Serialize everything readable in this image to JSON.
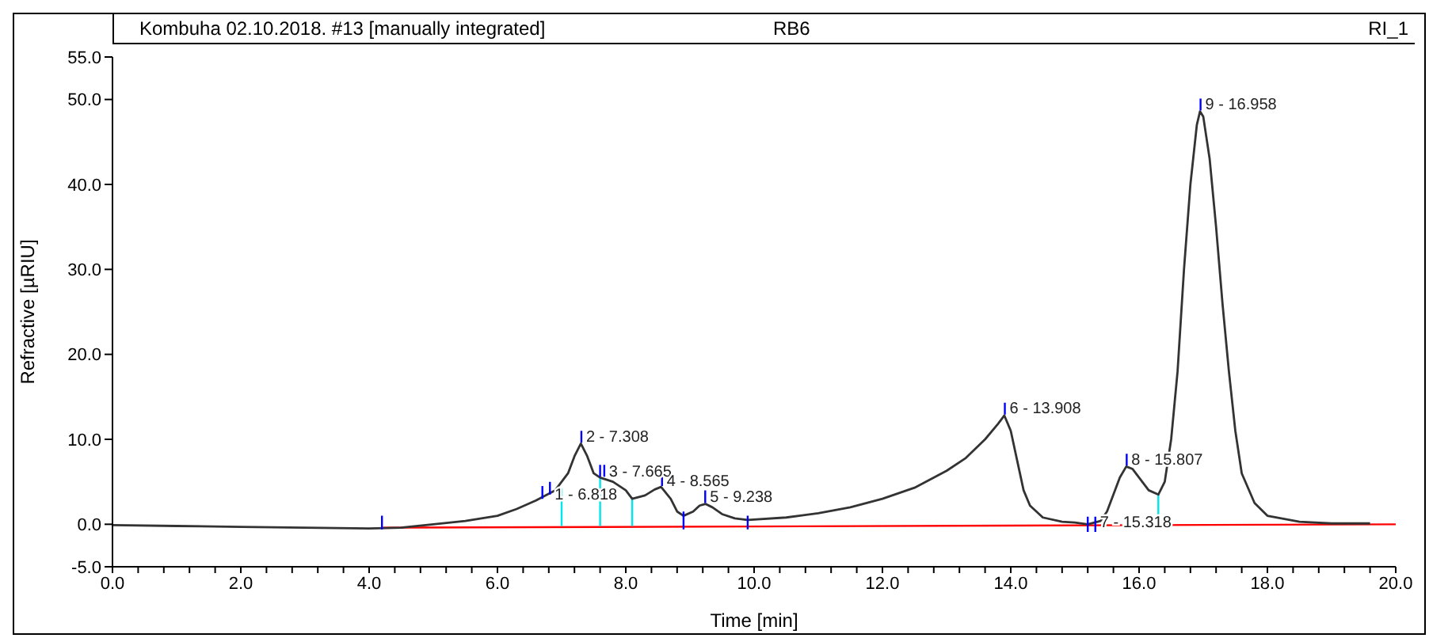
{
  "chart_data": {
    "type": "line",
    "title": "Kombuha 02.10.2018. #13 [manually integrated]",
    "xlabel": "Time [min]",
    "ylabel": "Refractive [µRIU]",
    "xlim": [
      0,
      20
    ],
    "ylim": [
      -5,
      55
    ],
    "xticks": [
      {
        "value": 0,
        "label": "0.0"
      },
      {
        "value": 0.4,
        "label": null
      },
      {
        "value": 0.8,
        "label": null
      },
      {
        "value": 1.2,
        "label": null
      },
      {
        "value": 1.6,
        "label": null
      },
      {
        "value": 2,
        "label": "2.0"
      },
      {
        "value": 2.4,
        "label": null
      },
      {
        "value": 2.8,
        "label": null
      },
      {
        "value": 3.2,
        "label": null
      },
      {
        "value": 3.6,
        "label": null
      },
      {
        "value": 4,
        "label": "4.0"
      },
      {
        "value": 4.4,
        "label": null
      },
      {
        "value": 4.8,
        "label": null
      },
      {
        "value": 5.2,
        "label": null
      },
      {
        "value": 5.6,
        "label": null
      },
      {
        "value": 6,
        "label": "6.0"
      },
      {
        "value": 6.4,
        "label": null
      },
      {
        "value": 6.8,
        "label": null
      },
      {
        "value": 7.2,
        "label": null
      },
      {
        "value": 7.6,
        "label": null
      },
      {
        "value": 8,
        "label": "8.0"
      },
      {
        "value": 8.4,
        "label": null
      },
      {
        "value": 8.8,
        "label": null
      },
      {
        "value": 9.2,
        "label": null
      },
      {
        "value": 9.6,
        "label": null
      },
      {
        "value": 10,
        "label": "10.0"
      },
      {
        "value": 10.4,
        "label": null
      },
      {
        "value": 10.8,
        "label": null
      },
      {
        "value": 11.2,
        "label": null
      },
      {
        "value": 11.6,
        "label": null
      },
      {
        "value": 12,
        "label": "12.0"
      },
      {
        "value": 12.4,
        "label": null
      },
      {
        "value": 12.8,
        "label": null
      },
      {
        "value": 13.2,
        "label": null
      },
      {
        "value": 13.6,
        "label": null
      },
      {
        "value": 14,
        "label": "14.0"
      },
      {
        "value": 14.4,
        "label": null
      },
      {
        "value": 14.8,
        "label": null
      },
      {
        "value": 15.2,
        "label": null
      },
      {
        "value": 15.6,
        "label": null
      },
      {
        "value": 16,
        "label": "16.0"
      },
      {
        "value": 16.4,
        "label": null
      },
      {
        "value": 16.8,
        "label": null
      },
      {
        "value": 17.2,
        "label": null
      },
      {
        "value": 17.6,
        "label": null
      },
      {
        "value": 18,
        "label": "18.0"
      },
      {
        "value": 18.4,
        "label": null
      },
      {
        "value": 18.8,
        "label": null
      },
      {
        "value": 19.2,
        "label": null
      },
      {
        "value": 19.6,
        "label": null
      },
      {
        "value": 20,
        "label": "20.0"
      }
    ],
    "yticks": [
      {
        "value": -5,
        "label": "-5.0"
      },
      {
        "value": 0,
        "label": "0.0"
      },
      {
        "value": 10,
        "label": "10.0"
      },
      {
        "value": 20,
        "label": "20.0"
      },
      {
        "value": 30,
        "label": "30.0"
      },
      {
        "value": 40,
        "label": "40.0"
      },
      {
        "value": 50,
        "label": "50.0"
      },
      {
        "value": 55,
        "label": "55.0"
      }
    ],
    "series": [
      {
        "type": "line",
        "color": "#ff0000",
        "x": [
          4.2,
          20
        ],
        "values": [
          -0.4,
          0
        ]
      },
      {
        "type": "line",
        "color": "#00e5ee",
        "x": [
          7.0,
          7.0,
          null,
          7.6,
          7.6,
          null,
          8.1,
          8.1,
          null,
          16.3,
          16.3
        ],
        "values": [
          -0.2,
          4.2,
          null,
          -0.2,
          5.5,
          null,
          -0.2,
          3,
          null,
          -0.1,
          3.5
        ]
      },
      {
        "type": "line",
        "color": "#333333",
        "x": [
          0,
          1,
          2,
          3,
          4,
          4.5,
          5,
          5.5,
          6,
          6.3,
          6.6,
          6.9,
          7.1,
          7.2,
          7.3,
          7.4,
          7.5,
          7.6,
          7.8,
          8,
          8.1,
          8.3,
          8.45,
          8.55,
          8.7,
          8.8,
          8.9,
          9.05,
          9.15,
          9.24,
          9.35,
          9.5,
          9.7,
          9.9,
          10.5,
          11,
          11.5,
          12,
          12.5,
          13,
          13.3,
          13.6,
          13.8,
          13.9,
          14,
          14.1,
          14.2,
          14.3,
          14.5,
          14.8,
          15,
          15.2,
          15.4,
          15.5,
          15.6,
          15.7,
          15.8,
          15.9,
          16,
          16.15,
          16.3,
          16.4,
          16.5,
          16.6,
          16.7,
          16.8,
          16.9,
          16.95,
          17,
          17.1,
          17.2,
          17.3,
          17.4,
          17.5,
          17.6,
          17.8,
          18,
          18.5,
          19,
          19.6
        ],
        "values": [
          -0.1,
          -0.2,
          -0.3,
          -0.4,
          -0.5,
          -0.4,
          0,
          0.4,
          1,
          1.8,
          2.8,
          4,
          6,
          8,
          9.5,
          8,
          6,
          5.5,
          5,
          4,
          3,
          3.4,
          4.1,
          4.4,
          3,
          1.5,
          1,
          1.5,
          2.2,
          2.4,
          2,
          1.2,
          0.7,
          0.5,
          0.8,
          1.3,
          2,
          3,
          4.3,
          6.3,
          7.8,
          10,
          11.8,
          12.8,
          11,
          7.5,
          4,
          2.2,
          0.8,
          0.3,
          0.2,
          0,
          0.4,
          1.5,
          3.5,
          5.5,
          6.8,
          6.5,
          5.5,
          4,
          3.5,
          5,
          10,
          18,
          30,
          40,
          47,
          48.6,
          48,
          43,
          35,
          26,
          18,
          11,
          6,
          2.5,
          1,
          0.3,
          0.1,
          0.1
        ]
      },
      {
        "type": "line",
        "color": "#0000ff",
        "x": [
          4.2,
          4.2,
          null,
          6.7,
          6.7,
          null,
          6.818,
          6.818,
          null,
          7.308,
          7.308,
          null,
          7.6,
          7.6,
          null,
          7.665,
          7.665,
          null,
          8.565,
          8.565,
          null,
          8.9,
          8.9,
          null,
          9.238,
          9.238,
          null,
          9.9,
          9.9,
          null,
          13.908,
          13.908,
          null,
          15.2,
          15.2,
          null,
          15.318,
          15.318,
          null,
          15.807,
          15.807,
          null,
          16.958,
          16.958
        ],
        "values": [
          -0.6,
          1,
          null,
          3,
          4.5,
          null,
          3.5,
          5,
          null,
          9.6,
          11,
          null,
          5.6,
          7,
          null,
          5.6,
          7,
          null,
          4.5,
          5.9,
          null,
          -0.6,
          1.5,
          null,
          2.5,
          4,
          null,
          -0.6,
          1,
          null,
          12.9,
          14.3,
          null,
          -0.9,
          0.9,
          null,
          -0.9,
          0.9,
          null,
          6.9,
          8.3,
          null,
          48.7,
          50.1
        ]
      }
    ],
    "annotations": [
      "RB6",
      "RI_1",
      {
        "text": "1 - 6.818",
        "x": 6.818,
        "y": 3.5
      },
      {
        "text": "2 - 7.308",
        "x": 7.308,
        "y": 10.3
      },
      {
        "text": "3 - 7.665",
        "x": 7.665,
        "y": 6.2
      },
      {
        "text": "4 - 8.565",
        "x": 8.565,
        "y": 5.1
      },
      {
        "text": "5 - 9.238",
        "x": 9.238,
        "y": 3.2
      },
      {
        "text": "6 - 13.908",
        "x": 13.908,
        "y": 13.6
      },
      {
        "text": "7 - 15.318",
        "x": 15.318,
        "y": 0.2
      },
      {
        "text": "8 - 15.807",
        "x": 15.807,
        "y": 7.6
      },
      {
        "text": "9 - 16.958",
        "x": 16.958,
        "y": 49.4
      }
    ]
  }
}
